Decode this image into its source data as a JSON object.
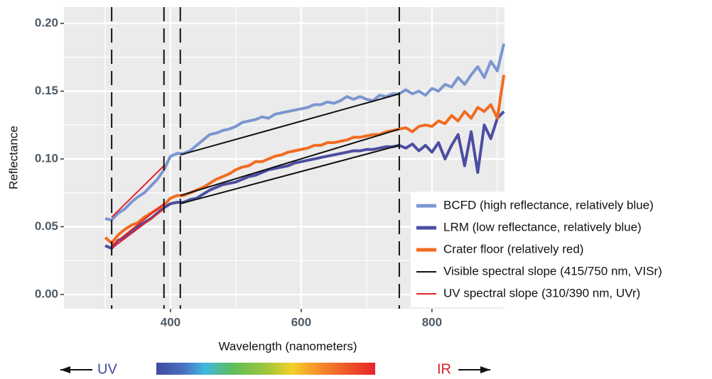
{
  "chart_data": {
    "type": "line",
    "xlabel": "Wavelength (nanometers)",
    "ylabel": "Reflectance",
    "xlim": [
      237,
      911
    ],
    "ylim": [
      -0.0105,
      0.212
    ],
    "xticks": [
      400,
      600,
      800
    ],
    "xminorticks": [
      300,
      500,
      700,
      900
    ],
    "yticks": [
      {
        "value": 0,
        "label": "0.00"
      },
      {
        "value": 0.05,
        "label": "0.05"
      },
      {
        "value": 0.1,
        "label": "0.10"
      },
      {
        "value": 0.15,
        "label": "0.15"
      },
      {
        "value": 0.2,
        "label": "0.20"
      }
    ],
    "yminorticks": [
      0.025,
      0.075,
      0.125,
      0.175
    ],
    "grid": true,
    "legend": "bottom-right",
    "vlines": [
      310,
      390,
      415,
      750
    ],
    "x": [
      300,
      310,
      320,
      330,
      340,
      350,
      360,
      370,
      380,
      390,
      400,
      410,
      420,
      430,
      440,
      450,
      460,
      470,
      480,
      490,
      500,
      510,
      520,
      530,
      540,
      550,
      560,
      570,
      580,
      590,
      600,
      610,
      620,
      630,
      640,
      650,
      660,
      670,
      680,
      690,
      700,
      710,
      720,
      730,
      740,
      750,
      760,
      770,
      780,
      790,
      800,
      810,
      820,
      830,
      840,
      850,
      860,
      870,
      880,
      890,
      900,
      910
    ],
    "series": [
      {
        "name": "BCFD (high reflectance, relatively blue)",
        "color": "#7b96d0",
        "values": [
          0.056,
          0.055,
          0.06,
          0.063,
          0.068,
          0.072,
          0.075,
          0.08,
          0.085,
          0.092,
          0.102,
          0.104,
          0.104,
          0.106,
          0.11,
          0.114,
          0.118,
          0.119,
          0.121,
          0.122,
          0.124,
          0.127,
          0.128,
          0.129,
          0.131,
          0.13,
          0.133,
          0.134,
          0.135,
          0.136,
          0.137,
          0.138,
          0.14,
          0.14,
          0.142,
          0.141,
          0.143,
          0.146,
          0.144,
          0.146,
          0.144,
          0.143,
          0.147,
          0.146,
          0.148,
          0.148,
          0.151,
          0.148,
          0.15,
          0.147,
          0.152,
          0.15,
          0.155,
          0.153,
          0.16,
          0.155,
          0.162,
          0.168,
          0.16,
          0.172,
          0.165,
          0.185
        ]
      },
      {
        "name": "LRM (low reflectance, relatively blue)",
        "color": "#4b4ea0",
        "values": [
          0.036,
          0.034,
          0.04,
          0.042,
          0.046,
          0.05,
          0.053,
          0.056,
          0.06,
          0.064,
          0.067,
          0.068,
          0.068,
          0.07,
          0.071,
          0.074,
          0.077,
          0.079,
          0.081,
          0.082,
          0.083,
          0.085,
          0.087,
          0.088,
          0.09,
          0.092,
          0.093,
          0.094,
          0.095,
          0.097,
          0.098,
          0.099,
          0.1,
          0.101,
          0.102,
          0.103,
          0.104,
          0.105,
          0.106,
          0.106,
          0.107,
          0.107,
          0.108,
          0.109,
          0.109,
          0.11,
          0.108,
          0.111,
          0.106,
          0.11,
          0.105,
          0.112,
          0.1,
          0.11,
          0.118,
          0.095,
          0.12,
          0.09,
          0.125,
          0.115,
          0.13,
          0.135
        ]
      },
      {
        "name": "Crater floor (relatively red)",
        "color": "#f26b21",
        "values": [
          0.042,
          0.038,
          0.044,
          0.048,
          0.051,
          0.053,
          0.057,
          0.06,
          0.063,
          0.066,
          0.071,
          0.073,
          0.073,
          0.075,
          0.077,
          0.079,
          0.082,
          0.085,
          0.087,
          0.089,
          0.092,
          0.094,
          0.095,
          0.098,
          0.098,
          0.1,
          0.102,
          0.103,
          0.105,
          0.106,
          0.107,
          0.108,
          0.11,
          0.11,
          0.112,
          0.112,
          0.113,
          0.114,
          0.116,
          0.116,
          0.117,
          0.118,
          0.118,
          0.12,
          0.121,
          0.122,
          0.123,
          0.12,
          0.124,
          0.125,
          0.124,
          0.128,
          0.126,
          0.132,
          0.128,
          0.135,
          0.13,
          0.138,
          0.135,
          0.14,
          0.13,
          0.162
        ]
      }
    ],
    "slopes": [
      {
        "name": "Visible spectral slope (415/750 nm, VISr)",
        "color": "#111111",
        "segments": [
          {
            "x": [
              415,
              750
            ],
            "values": [
              0.103,
              0.148
            ]
          },
          {
            "x": [
              415,
              750
            ],
            "values": [
              0.073,
              0.122
            ]
          },
          {
            "x": [
              415,
              750
            ],
            "values": [
              0.067,
              0.11
            ]
          }
        ]
      },
      {
        "name": "UV spectral slope (310/390 nm, UVr)",
        "color": "#e8232a",
        "segments": [
          {
            "x": [
              310,
              390
            ],
            "values": [
              0.057,
              0.095
            ]
          },
          {
            "x": [
              310,
              390
            ],
            "values": [
              0.036,
              0.067
            ]
          },
          {
            "x": [
              310,
              390
            ],
            "values": [
              0.034,
              0.063
            ]
          }
        ]
      }
    ],
    "spectrum": {
      "left": "UV",
      "right": "IR"
    }
  }
}
